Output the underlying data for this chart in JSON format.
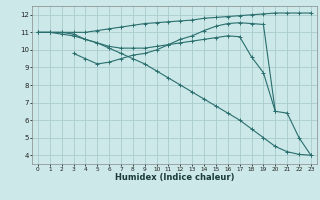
{
  "xlabel": "Humidex (Indice chaleur)",
  "bg_color": "#cce8e8",
  "grid_color": "#aacccc",
  "line_color": "#2a6e6e",
  "xlim": [
    -0.5,
    23.5
  ],
  "ylim": [
    3.5,
    12.5
  ],
  "xticks": [
    0,
    1,
    2,
    3,
    4,
    5,
    6,
    7,
    8,
    9,
    10,
    11,
    12,
    13,
    14,
    15,
    16,
    17,
    18,
    19,
    20,
    21,
    22,
    23
  ],
  "yticks": [
    4,
    5,
    6,
    7,
    8,
    9,
    10,
    11,
    12
  ],
  "lines": [
    {
      "x": [
        0,
        1,
        2,
        3,
        4,
        5,
        6,
        7,
        8,
        9,
        10,
        11,
        12,
        13,
        14,
        15,
        16,
        17,
        18,
        19,
        20,
        21,
        22,
        23
      ],
      "y": [
        11,
        11,
        11,
        11,
        11,
        11.1,
        11.2,
        11.3,
        11.4,
        11.5,
        11.55,
        11.6,
        11.65,
        11.7,
        11.8,
        11.85,
        11.9,
        11.95,
        12.0,
        12.05,
        12.1,
        12.1,
        12.1,
        12.1
      ]
    },
    {
      "x": [
        0,
        1,
        2,
        3,
        4,
        5,
        6,
        7,
        8,
        9,
        10,
        11,
        12,
        13,
        14,
        15,
        16,
        17,
        18,
        19,
        20
      ],
      "y": [
        11,
        11,
        11,
        10.9,
        10.6,
        10.4,
        10.2,
        10.1,
        10.1,
        10.1,
        10.2,
        10.3,
        10.4,
        10.5,
        10.6,
        10.7,
        10.8,
        10.75,
        9.6,
        8.7,
        6.5
      ]
    },
    {
      "x": [
        3,
        4,
        5,
        6,
        7,
        8,
        9,
        10,
        11,
        12,
        13,
        14,
        15,
        16,
        17,
        18,
        19,
        20,
        21,
        22,
        23
      ],
      "y": [
        9.8,
        9.5,
        9.2,
        9.3,
        9.5,
        9.7,
        9.8,
        10.0,
        10.3,
        10.6,
        10.8,
        11.1,
        11.35,
        11.5,
        11.55,
        11.5,
        11.45,
        6.5,
        6.4,
        5.0,
        4.0
      ]
    },
    {
      "x": [
        0,
        1,
        2,
        3,
        4,
        5,
        6,
        7,
        8,
        9,
        10,
        11,
        12,
        13,
        14,
        15,
        16,
        17,
        18,
        19,
        20,
        21,
        22,
        23
      ],
      "y": [
        11,
        11,
        10.9,
        10.8,
        10.6,
        10.4,
        10.1,
        9.8,
        9.5,
        9.2,
        8.8,
        8.4,
        8.0,
        7.6,
        7.2,
        6.8,
        6.4,
        6.0,
        5.5,
        5.0,
        4.5,
        4.2,
        4.05,
        4.0
      ]
    }
  ]
}
